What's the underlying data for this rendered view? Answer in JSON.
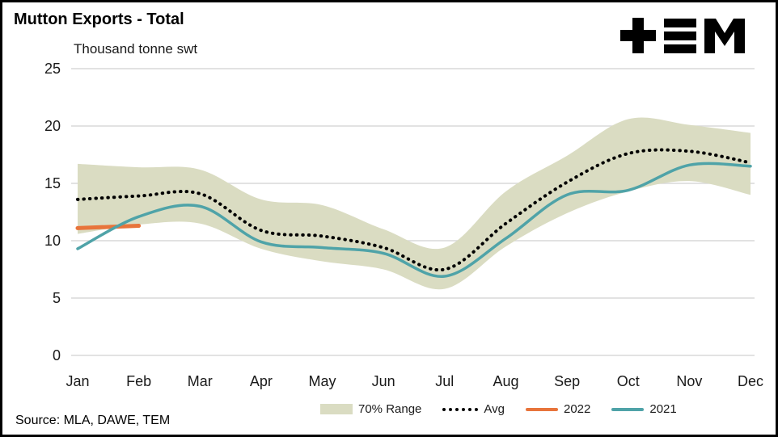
{
  "header": {
    "title": "Mutton Exports - Total",
    "subtitle": "Thousand tonne swt",
    "logo_name": "TEM"
  },
  "footer": {
    "source": "Source: MLA, DAWE, TEM"
  },
  "legend": {
    "range": "70% Range",
    "avg": "Avg",
    "s2022": "2022",
    "s2021": "2021"
  },
  "colors": {
    "band": "#dadcc2",
    "avg": "#000000",
    "s2022": "#e8743b",
    "s2021": "#4fa3a8",
    "grid": "#d9d9d9",
    "logo": "#000000"
  },
  "chart_data": {
    "type": "line",
    "title": "Mutton Exports - Total",
    "ylabel": "Thousand tonne swt",
    "xlabel": "",
    "ylim": [
      0,
      25
    ],
    "yticks": [
      0,
      5,
      10,
      15,
      20,
      25
    ],
    "grid": "horizontal",
    "legend_position": "bottom",
    "categories": [
      "Jan",
      "Feb",
      "Mar",
      "Apr",
      "May",
      "Jun",
      "Jul",
      "Aug",
      "Sep",
      "Oct",
      "Nov",
      "Dec"
    ],
    "band": {
      "name": "70% Range",
      "upper": [
        16.7,
        16.4,
        16.2,
        13.6,
        13.1,
        11.0,
        9.4,
        14.3,
        17.4,
        20.6,
        20.1,
        19.4
      ],
      "lower": [
        10.6,
        11.4,
        11.5,
        9.3,
        8.2,
        7.5,
        5.8,
        9.5,
        12.4,
        14.3,
        15.2,
        14.0
      ]
    },
    "series": [
      {
        "name": "Avg",
        "style": "dotted",
        "color": "#000000",
        "width": 3.5,
        "values": [
          13.6,
          13.9,
          14.1,
          10.9,
          10.4,
          9.4,
          7.5,
          11.5,
          15.1,
          17.6,
          17.8,
          16.8
        ]
      },
      {
        "name": "2022",
        "style": "solid",
        "color": "#e8743b",
        "width": 5,
        "values": [
          11.1,
          11.3,
          null,
          null,
          null,
          null,
          null,
          null,
          null,
          null,
          null,
          null
        ]
      },
      {
        "name": "2021",
        "style": "solid",
        "color": "#4fa3a8",
        "width": 3.5,
        "values": [
          9.3,
          12.1,
          13.0,
          9.9,
          9.4,
          8.9,
          6.9,
          10.2,
          14.0,
          14.4,
          16.6,
          16.5
        ]
      }
    ]
  }
}
